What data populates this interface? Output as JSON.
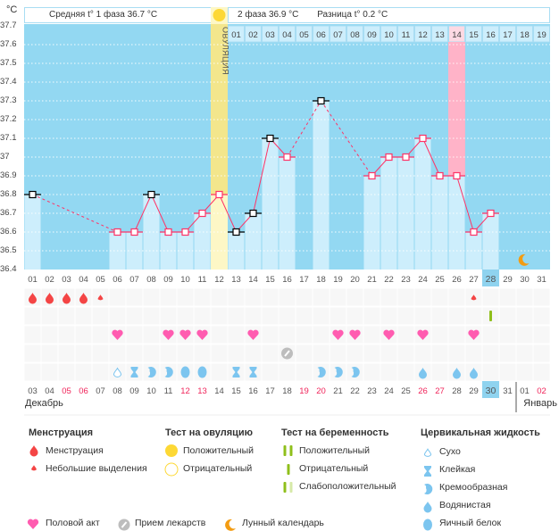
{
  "header": {
    "unit": "°C",
    "phase1": "Средняя t° 1 фаза 36.7 °C",
    "phase2": "2 фаза 36.9 °C",
    "difference": "Разница t° 0.2 °C",
    "ovulation_label": "ОВУЛЯЦИЯ"
  },
  "colors": {
    "background": "#93d8f2",
    "bar": "#cdeefc",
    "line": "#ff3366",
    "ovulation": "#fdf7c6",
    "cycle_day_14": "#ffb3c8",
    "highlight": "#8fd3ef"
  },
  "chart_data": {
    "type": "bar",
    "ylim": [
      36.4,
      37.7
    ],
    "yticks": [
      "37.7",
      "37.6",
      "37.5",
      "37.4",
      "37.3",
      "37.2",
      "37.1",
      "37",
      "36.9",
      "36.8",
      "36.7",
      "36.6",
      "36.5",
      "36.4"
    ],
    "grid": true,
    "x": [
      "01",
      "02",
      "03",
      "04",
      "05",
      "06",
      "07",
      "08",
      "09",
      "10",
      "11",
      "12",
      "13",
      "14",
      "15",
      "16",
      "17",
      "18",
      "19",
      "20",
      "21",
      "22",
      "23",
      "24",
      "25",
      "26",
      "27",
      "28",
      "29",
      "30",
      "31"
    ],
    "highlighted_x": "28",
    "cycle_days": [
      "",
      "",
      "",
      "",
      "",
      "",
      "",
      "",
      "",
      "",
      "",
      "",
      "01",
      "02",
      "03",
      "04",
      "05",
      "06",
      "07",
      "08",
      "09",
      "10",
      "11",
      "12",
      "13",
      "14",
      "15",
      "16",
      "17",
      "18",
      "19"
    ],
    "ovulation_day": "12",
    "highlighted_cycle_day": "14",
    "values": [
      36.8,
      null,
      null,
      null,
      null,
      36.6,
      36.6,
      36.8,
      36.6,
      36.6,
      36.7,
      36.8,
      36.6,
      36.7,
      37.1,
      37.0,
      null,
      37.3,
      null,
      null,
      36.9,
      37.0,
      37.0,
      37.1,
      36.9,
      36.9,
      36.6,
      36.7,
      null,
      null,
      null
    ],
    "marked_black": [
      "01",
      "08",
      "13",
      "14",
      "15",
      "18"
    ]
  },
  "rows": {
    "menstruation": [
      "big",
      "big",
      "big",
      "big",
      "small",
      "",
      "",
      "",
      "",
      "",
      "",
      "",
      "",
      "",
      "",
      "",
      "",
      "",
      "",
      "",
      "",
      "",
      "",
      "",
      "",
      "",
      "small",
      "",
      "",
      "",
      ""
    ],
    "pregnancy_test": [
      "",
      "",
      "",
      "",
      "",
      "",
      "",
      "",
      "",
      "",
      "",
      "",
      "",
      "",
      "",
      "",
      "",
      "",
      "",
      "",
      "",
      "",
      "",
      "",
      "",
      "",
      "",
      "negative",
      "",
      "",
      ""
    ],
    "intercourse": [
      0,
      0,
      0,
      0,
      0,
      1,
      0,
      0,
      1,
      1,
      1,
      0,
      0,
      1,
      0,
      0,
      0,
      0,
      1,
      1,
      0,
      1,
      0,
      1,
      0,
      0,
      1,
      0,
      0,
      0,
      0
    ],
    "medication": [
      0,
      0,
      0,
      0,
      0,
      0,
      0,
      0,
      0,
      0,
      0,
      0,
      0,
      0,
      0,
      1,
      0,
      0,
      0,
      0,
      0,
      0,
      0,
      0,
      0,
      0,
      0,
      0,
      0,
      0,
      0
    ],
    "cervical": [
      "",
      "",
      "",
      "",
      "",
      "dry",
      "sticky",
      "creamy",
      "creamy",
      "eggwhite",
      "eggwhite",
      "",
      "sticky",
      "sticky",
      "",
      "",
      "",
      "creamy",
      "creamy",
      "creamy",
      "",
      "",
      "",
      "watery",
      "",
      "watery",
      "watery",
      "",
      "",
      "",
      ""
    ],
    "moon": "30"
  },
  "dates": [
    "03",
    "04",
    "05",
    "06",
    "07",
    "08",
    "09",
    "10",
    "11",
    "12",
    "13",
    "14",
    "15",
    "16",
    "17",
    "18",
    "19",
    "20",
    "21",
    "22",
    "23",
    "24",
    "25",
    "26",
    "27",
    "28",
    "29",
    "30",
    "31",
    "01",
    "02"
  ],
  "weekend_dates": [
    "05",
    "06",
    "12",
    "13",
    "19",
    "20",
    "26",
    "27",
    "02"
  ],
  "today_date": "30",
  "months": {
    "first": "Декабрь",
    "second": "Январь"
  },
  "legend": {
    "menstruation": {
      "title": "Менструация",
      "items": [
        "Менструация",
        "Небольшие выделения"
      ]
    },
    "ovulation_test": {
      "title": "Тест на овуляцию",
      "items": [
        "Положительный",
        "Отрицательный"
      ]
    },
    "pregnancy_test": {
      "title": "Тест на беременность",
      "items": [
        "Положительный",
        "Отрицательный",
        "Слабоположительный"
      ]
    },
    "cervical": {
      "title": "Цервикальная жидкость",
      "items": [
        "Сухо",
        "Клейкая",
        "Кремообразная",
        "Водянистая",
        "Яичный белок"
      ]
    },
    "other": [
      "Половой акт",
      "Прием лекарств",
      "Лунный календарь"
    ]
  }
}
